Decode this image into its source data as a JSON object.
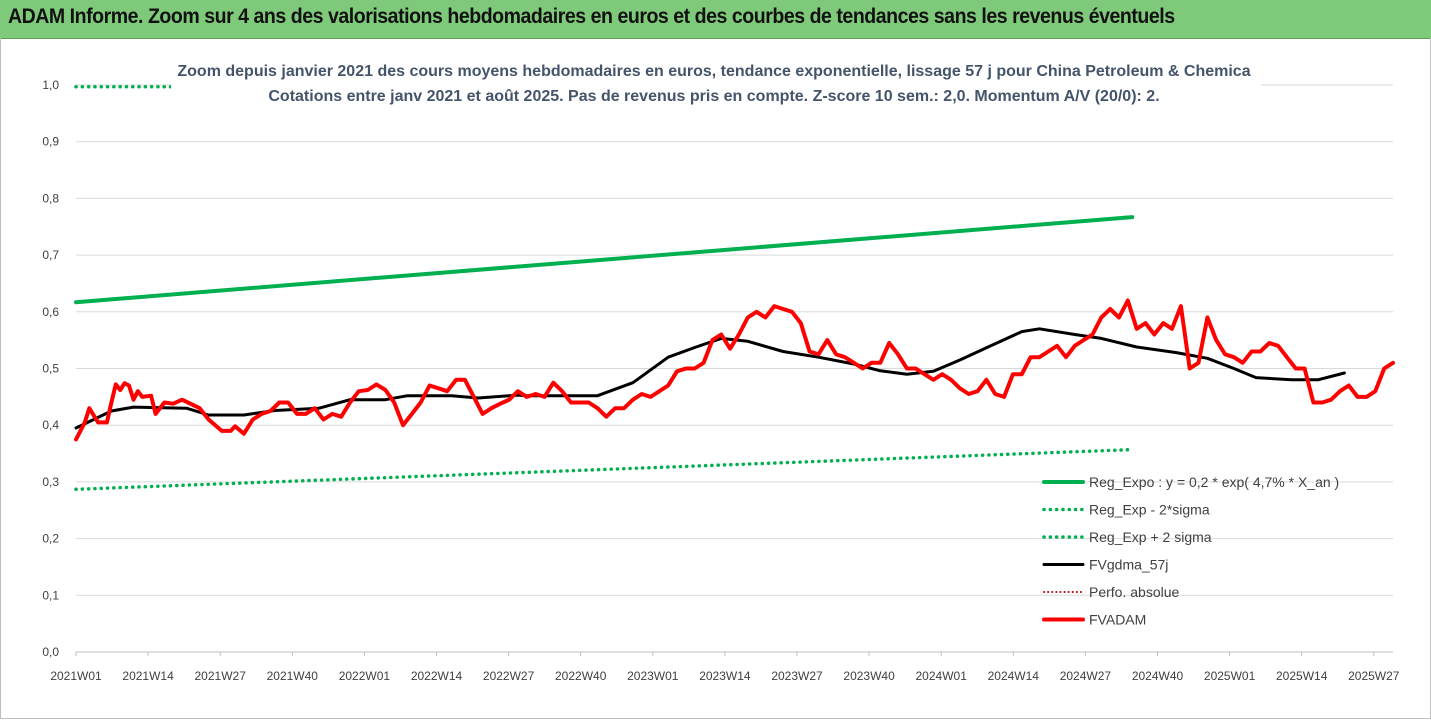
{
  "banner": {
    "title": "ADAM Informe. Zoom sur 4 ans des valorisations hebdomadaires en euros et des courbes de tendances sans les revenus éventuels"
  },
  "chart_data": {
    "type": "line",
    "title": "Zoom depuis janvier 2021 des cours moyens hebdomadaires en euros, tendance exponentielle, lissage 57 j pour China Petroleum & Chemica",
    "subtitle": "Cotations entre janv 2021 et août 2025.  Pas de revenus pris en compte. Z-score 10 sem.: 2,0. Momentum A/V (20/0): 2.",
    "ylim": [
      0,
      1
    ],
    "y_ticks": [
      "0,0",
      "0,1",
      "0,2",
      "0,3",
      "0,4",
      "0,5",
      "0,6",
      "0,7",
      "0,8",
      "0,9",
      "1,0"
    ],
    "x_ticks": [
      "2021W01",
      "2021W14",
      "2021W27",
      "2021W40",
      "2022W01",
      "2022W14",
      "2022W27",
      "2022W40",
      "2023W01",
      "2023W14",
      "2023W27",
      "2023W40",
      "2024W01",
      "2024W14",
      "2024W27",
      "2024W40",
      "2025W01",
      "2025W14",
      "2025W27"
    ],
    "grid": "horizontal",
    "legend_position": "bottom-right",
    "n_weeks": 240,
    "series": [
      {
        "name": "Reg_Expo : y = 0,2 * exp( 4,7% *  X_an )",
        "color": "#00b050",
        "style": "solid-thick",
        "keypoints": [
          [
            0,
            0.617
          ],
          [
            239,
            0.767
          ]
        ]
      },
      {
        "name": "Reg_Exp - 2*sigma",
        "color": "#00b050",
        "style": "dotted",
        "keypoints": [
          [
            0,
            0.287
          ],
          [
            239,
            0.357
          ]
        ]
      },
      {
        "name": "Reg_Exp + 2 sigma",
        "color": "#00b050",
        "style": "dotted",
        "keypoints": [
          [
            0,
            0.997
          ],
          [
            239,
            0.997
          ]
        ]
      },
      {
        "name": "FVgdma_57j",
        "color": "#000000",
        "style": "solid",
        "keypoints": [
          [
            0,
            0.395
          ],
          [
            8,
            0.425
          ],
          [
            13,
            0.432
          ],
          [
            25,
            0.43
          ],
          [
            30,
            0.418
          ],
          [
            38,
            0.418
          ],
          [
            45,
            0.426
          ],
          [
            55,
            0.43
          ],
          [
            62,
            0.445
          ],
          [
            70,
            0.445
          ],
          [
            75,
            0.452
          ],
          [
            85,
            0.452
          ],
          [
            91,
            0.448
          ],
          [
            100,
            0.453
          ],
          [
            108,
            0.452
          ],
          [
            102,
            0.452
          ],
          [
            118,
            0.452
          ],
          [
            126,
            0.475
          ],
          [
            134,
            0.52
          ],
          [
            140,
            0.537
          ],
          [
            146,
            0.553
          ],
          [
            152,
            0.548
          ],
          [
            160,
            0.53
          ],
          [
            168,
            0.52
          ],
          [
            176,
            0.508
          ],
          [
            182,
            0.496
          ],
          [
            188,
            0.49
          ],
          [
            194,
            0.495
          ],
          [
            200,
            0.515
          ],
          [
            207,
            0.54
          ],
          [
            214,
            0.565
          ],
          [
            218,
            0.57
          ],
          [
            226,
            0.56
          ],
          [
            232,
            0.553
          ],
          [
            240,
            0.538
          ],
          [
            249,
            0.528
          ],
          [
            256,
            0.518
          ],
          [
            262,
            0.5
          ],
          [
            267,
            0.484
          ],
          [
            275,
            0.48
          ],
          [
            281,
            0.48
          ],
          [
            287,
            0.492
          ]
        ]
      },
      {
        "name": "Perfo. absolue",
        "color": "#c00000",
        "style": "dotted-thin",
        "keypoints": []
      },
      {
        "name": "FVADAM",
        "color": "#ff0000",
        "style": "solid-thick",
        "keypoints": [
          [
            0,
            0.375
          ],
          [
            2,
            0.405
          ],
          [
            3,
            0.43
          ],
          [
            5,
            0.405
          ],
          [
            7,
            0.405
          ],
          [
            8,
            0.44
          ],
          [
            9,
            0.472
          ],
          [
            10,
            0.462
          ],
          [
            11,
            0.474
          ],
          [
            12,
            0.47
          ],
          [
            13,
            0.445
          ],
          [
            14,
            0.46
          ],
          [
            15,
            0.45
          ],
          [
            17,
            0.452
          ],
          [
            18,
            0.42
          ],
          [
            20,
            0.44
          ],
          [
            22,
            0.438
          ],
          [
            24,
            0.445
          ],
          [
            28,
            0.43
          ],
          [
            30,
            0.41
          ],
          [
            33,
            0.39
          ],
          [
            35,
            0.39
          ],
          [
            36,
            0.398
          ],
          [
            38,
            0.385
          ],
          [
            40,
            0.41
          ],
          [
            42,
            0.42
          ],
          [
            44,
            0.425
          ],
          [
            46,
            0.44
          ],
          [
            48,
            0.44
          ],
          [
            50,
            0.42
          ],
          [
            52,
            0.42
          ],
          [
            54,
            0.43
          ],
          [
            56,
            0.41
          ],
          [
            58,
            0.42
          ],
          [
            60,
            0.415
          ],
          [
            62,
            0.44
          ],
          [
            64,
            0.46
          ],
          [
            66,
            0.462
          ],
          [
            68,
            0.472
          ],
          [
            70,
            0.462
          ],
          [
            72,
            0.44
          ],
          [
            74,
            0.4
          ],
          [
            76,
            0.42
          ],
          [
            78,
            0.44
          ],
          [
            80,
            0.47
          ],
          [
            82,
            0.465
          ],
          [
            84,
            0.46
          ],
          [
            86,
            0.48
          ],
          [
            88,
            0.48
          ],
          [
            90,
            0.45
          ],
          [
            92,
            0.42
          ],
          [
            94,
            0.43
          ],
          [
            96,
            0.438
          ],
          [
            98,
            0.445
          ],
          [
            100,
            0.46
          ],
          [
            102,
            0.45
          ],
          [
            104,
            0.455
          ],
          [
            106,
            0.45
          ],
          [
            108,
            0.475
          ],
          [
            110,
            0.46
          ],
          [
            112,
            0.44
          ],
          [
            114,
            0.44
          ],
          [
            116,
            0.44
          ],
          [
            118,
            0.43
          ],
          [
            120,
            0.415
          ],
          [
            122,
            0.43
          ],
          [
            124,
            0.43
          ],
          [
            126,
            0.445
          ],
          [
            128,
            0.455
          ],
          [
            130,
            0.45
          ],
          [
            132,
            0.46
          ],
          [
            134,
            0.47
          ],
          [
            136,
            0.495
          ],
          [
            138,
            0.5
          ],
          [
            140,
            0.5
          ],
          [
            142,
            0.51
          ],
          [
            144,
            0.55
          ],
          [
            146,
            0.56
          ],
          [
            148,
            0.535
          ],
          [
            150,
            0.56
          ],
          [
            152,
            0.59
          ],
          [
            154,
            0.6
          ],
          [
            156,
            0.59
          ],
          [
            158,
            0.61
          ],
          [
            160,
            0.605
          ],
          [
            162,
            0.6
          ],
          [
            164,
            0.58
          ],
          [
            166,
            0.53
          ],
          [
            168,
            0.525
          ],
          [
            170,
            0.55
          ],
          [
            172,
            0.525
          ],
          [
            174,
            0.52
          ],
          [
            176,
            0.51
          ],
          [
            178,
            0.5
          ],
          [
            180,
            0.51
          ],
          [
            182,
            0.51
          ],
          [
            184,
            0.545
          ],
          [
            186,
            0.525
          ],
          [
            188,
            0.5
          ],
          [
            190,
            0.5
          ],
          [
            192,
            0.49
          ],
          [
            194,
            0.48
          ],
          [
            196,
            0.49
          ],
          [
            198,
            0.48
          ],
          [
            200,
            0.465
          ],
          [
            202,
            0.455
          ],
          [
            204,
            0.46
          ],
          [
            206,
            0.48
          ],
          [
            208,
            0.455
          ],
          [
            210,
            0.45
          ],
          [
            212,
            0.49
          ],
          [
            214,
            0.49
          ],
          [
            216,
            0.52
          ],
          [
            218,
            0.52
          ],
          [
            220,
            0.53
          ],
          [
            222,
            0.54
          ],
          [
            224,
            0.52
          ],
          [
            226,
            0.54
          ],
          [
            228,
            0.55
          ],
          [
            230,
            0.56
          ],
          [
            232,
            0.59
          ],
          [
            234,
            0.605
          ],
          [
            236,
            0.59
          ],
          [
            238,
            0.62
          ],
          [
            240,
            0.57
          ],
          [
            242,
            0.58
          ],
          [
            244,
            0.56
          ],
          [
            246,
            0.58
          ],
          [
            248,
            0.57
          ],
          [
            250,
            0.61
          ],
          [
            252,
            0.5
          ],
          [
            254,
            0.51
          ],
          [
            256,
            0.59
          ],
          [
            258,
            0.55
          ],
          [
            260,
            0.525
          ],
          [
            262,
            0.52
          ],
          [
            264,
            0.51
          ],
          [
            266,
            0.53
          ],
          [
            268,
            0.53
          ],
          [
            270,
            0.545
          ],
          [
            272,
            0.54
          ],
          [
            274,
            0.52
          ],
          [
            276,
            0.5
          ],
          [
            278,
            0.5
          ],
          [
            280,
            0.44
          ],
          [
            282,
            0.44
          ],
          [
            284,
            0.445
          ],
          [
            286,
            0.46
          ],
          [
            288,
            0.47
          ],
          [
            290,
            0.45
          ],
          [
            292,
            0.45
          ],
          [
            294,
            0.46
          ],
          [
            296,
            0.5
          ],
          [
            298,
            0.51
          ]
        ]
      }
    ]
  }
}
